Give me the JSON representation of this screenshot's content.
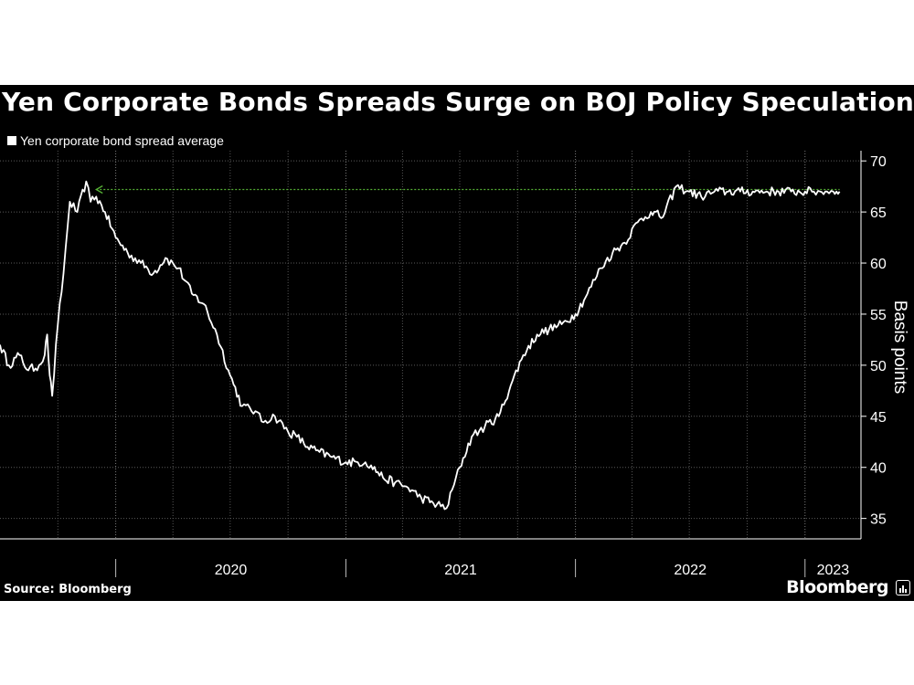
{
  "chart_data": {
    "type": "line",
    "title": "Yen Corporate Bonds Spreads Surge on BOJ Policy Speculation",
    "legend": [
      "Yen corporate bond spread average"
    ],
    "ylabel": "Basis points",
    "y_ticks": [
      35,
      40,
      45,
      50,
      55,
      60,
      65,
      70
    ],
    "y_tick_labels": [
      "35",
      "40",
      "45",
      "50",
      "55",
      "60",
      "65",
      "70"
    ],
    "ylim": [
      33,
      71
    ],
    "xlim": [
      "2019-07-01",
      "2023-03-31"
    ],
    "x_tick_labels": [
      "2020",
      "2021",
      "2022",
      "2023"
    ],
    "grid": true,
    "legend_position": "top-left",
    "reference_line": {
      "value": 67.2,
      "from": "2019-12-01",
      "to": "2023-02-25",
      "color": "#55b035",
      "style": "dotted arrow"
    },
    "series": [
      {
        "name": "Yen corporate bond spread average",
        "color": "#ffffff",
        "x": [
          "2019-07-01",
          "2019-07-15",
          "2019-08-01",
          "2019-08-15",
          "2019-09-01",
          "2019-09-10",
          "2019-09-14",
          "2019-09-18",
          "2019-09-22",
          "2019-10-01",
          "2019-10-10",
          "2019-10-20",
          "2019-11-01",
          "2019-11-15",
          "2019-11-22",
          "2019-12-01",
          "2019-12-15",
          "2020-01-01",
          "2020-01-20",
          "2020-02-10",
          "2020-03-01",
          "2020-03-20",
          "2020-04-10",
          "2020-05-01",
          "2020-05-20",
          "2020-06-10",
          "2020-07-01",
          "2020-07-20",
          "2020-08-10",
          "2020-08-20",
          "2020-09-10",
          "2020-10-01",
          "2020-10-15",
          "2020-11-01",
          "2020-11-20",
          "2020-12-10",
          "2021-01-01",
          "2021-01-20",
          "2021-02-01",
          "2021-02-10",
          "2021-03-01",
          "2021-03-20",
          "2021-04-10",
          "2021-05-01",
          "2021-05-20",
          "2021-06-10",
          "2021-07-01",
          "2021-07-20",
          "2021-08-10",
          "2021-09-01",
          "2021-09-20",
          "2021-10-10",
          "2021-11-01",
          "2021-11-20",
          "2021-12-10",
          "2022-01-01",
          "2022-01-20",
          "2022-02-10",
          "2022-03-01",
          "2022-03-20",
          "2022-04-10",
          "2022-05-01",
          "2022-05-20",
          "2022-06-10",
          "2022-07-01",
          "2022-07-20",
          "2022-08-10",
          "2022-09-01",
          "2022-09-20",
          "2022-10-10",
          "2022-11-01",
          "2022-11-20",
          "2022-12-10",
          "2023-01-01",
          "2023-01-15",
          "2023-01-25",
          "2023-02-05",
          "2023-02-15",
          "2023-02-20",
          "2023-02-25"
        ],
        "values": [
          52,
          50,
          51,
          49.5,
          50,
          51,
          53,
          49,
          47,
          54,
          59,
          66,
          65,
          68,
          66,
          66.5,
          65,
          62.5,
          61,
          60,
          59,
          60.5,
          59.5,
          57,
          56,
          53,
          49,
          46,
          45.5,
          44.5,
          45,
          43.5,
          43,
          42,
          41.5,
          41,
          40.5,
          40.5,
          40.5,
          40.2,
          39,
          38.5,
          38,
          37,
          36.5,
          36,
          40,
          43,
          44,
          45,
          48,
          51,
          53,
          53.5,
          54,
          55,
          57,
          59.5,
          61,
          62,
          64,
          65,
          64.5,
          67.5,
          67,
          66.5,
          67,
          67,
          67,
          67,
          67,
          67,
          67,
          67,
          67,
          67,
          67,
          67,
          67,
          67
        ]
      }
    ]
  },
  "source": "Source: Bloomberg",
  "brand": "Bloomberg"
}
